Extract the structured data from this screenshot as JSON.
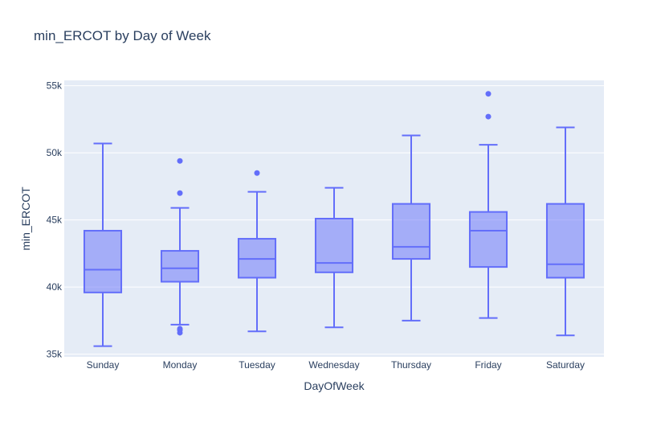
{
  "chart_data": {
    "type": "box",
    "title": "min_ERCOT by Day of Week",
    "xlabel": "DayOfWeek",
    "ylabel": "min_ERCOT",
    "ylim": [
      34800,
      55400
    ],
    "yticks": [
      35000,
      40000,
      45000,
      50000,
      55000
    ],
    "ytick_labels": [
      "35k",
      "40k",
      "45k",
      "50k",
      "55k"
    ],
    "categories": [
      "Sunday",
      "Monday",
      "Tuesday",
      "Wednesday",
      "Thursday",
      "Friday",
      "Saturday"
    ],
    "boxes": [
      {
        "category": "Sunday",
        "lower_whisker": 35600,
        "q1": 39600,
        "median": 41300,
        "q3": 44200,
        "upper_whisker": 50700,
        "outliers": []
      },
      {
        "category": "Monday",
        "lower_whisker": 37200,
        "q1": 40400,
        "median": 41400,
        "q3": 42700,
        "upper_whisker": 45900,
        "outliers": [
          36600,
          36800,
          36900,
          47000,
          49400
        ]
      },
      {
        "category": "Tuesday",
        "lower_whisker": 36700,
        "q1": 40700,
        "median": 42100,
        "q3": 43600,
        "upper_whisker": 47100,
        "outliers": [
          48500
        ]
      },
      {
        "category": "Wednesday",
        "lower_whisker": 37000,
        "q1": 41100,
        "median": 41800,
        "q3": 45100,
        "upper_whisker": 47400,
        "outliers": []
      },
      {
        "category": "Thursday",
        "lower_whisker": 37500,
        "q1": 42100,
        "median": 43000,
        "q3": 46200,
        "upper_whisker": 51300,
        "outliers": []
      },
      {
        "category": "Friday",
        "lower_whisker": 37700,
        "q1": 41500,
        "median": 44200,
        "q3": 45600,
        "upper_whisker": 50600,
        "outliers": [
          52700,
          54400
        ]
      },
      {
        "category": "Saturday",
        "lower_whisker": 36400,
        "q1": 40700,
        "median": 41700,
        "q3": 46200,
        "upper_whisker": 51900,
        "outliers": []
      }
    ],
    "colors": {
      "box_line": "#636efa",
      "box_fill": "rgba(99,110,250,0.5)",
      "plot_bg": "#e5ecf6",
      "grid": "#ffffff",
      "text": "#2a3f5f"
    },
    "grid": true
  }
}
